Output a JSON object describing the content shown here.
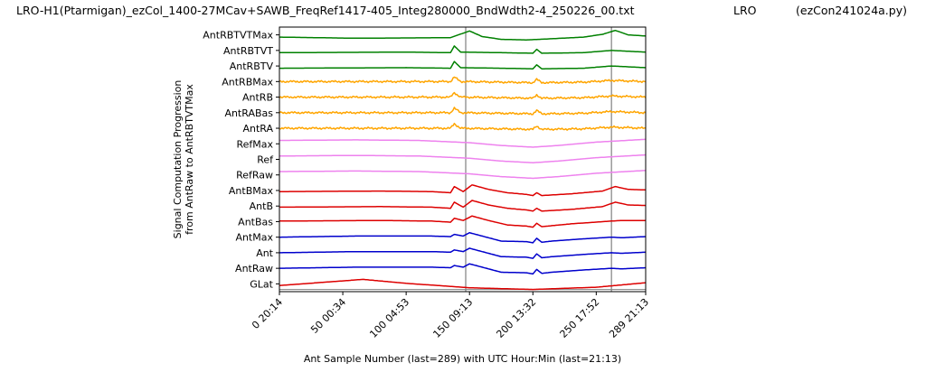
{
  "header": {
    "left": "LRO-H1(Ptarmigan)_ezCol_1400-27MCav+SAWB_FreqRef1417-405_Integ280000_BndWdth2-4_250226_00.txt",
    "middle": "LRO",
    "right": "(ezCon241024a.py)"
  },
  "chart_data": {
    "type": "line",
    "title": "",
    "xlabel": "Ant Sample Number (last=289) with UTC Hour:Min (last=21:13)",
    "ylabel": [
      "Signal Computation Progression",
      "from AntRaw to AntRBTVTMax"
    ],
    "xlim": [
      0,
      289
    ],
    "x_ticks": [
      {
        "x": 0,
        "label": "0  20:14"
      },
      {
        "x": 50,
        "label": "50  00:34"
      },
      {
        "x": 100,
        "label": "100  04:53"
      },
      {
        "x": 150,
        "label": "150  09:13"
      },
      {
        "x": 200,
        "label": "200  13:32"
      },
      {
        "x": 250,
        "label": "250  17:52"
      },
      {
        "x": 289,
        "label": "289  21:13"
      }
    ],
    "vlines": [
      147,
      262
    ],
    "grid": false,
    "legend": "none",
    "series": [
      {
        "name": "GLat",
        "color": "#dd0000",
        "x": [
          0,
          66,
          100,
          150,
          200,
          250,
          289
        ],
        "y": [
          0.35,
          0.9,
          0.55,
          0.15,
          0.0,
          0.2,
          0.6
        ],
        "baseline": true
      },
      {
        "name": "AntRaw",
        "color": "#0000cc",
        "x": [
          0,
          60,
          120,
          135,
          138,
          145,
          150,
          160,
          175,
          195,
          200,
          203,
          207,
          215,
          240,
          262,
          270,
          289
        ],
        "y": [
          0.5,
          0.6,
          0.6,
          0.55,
          0.75,
          0.6,
          0.9,
          0.6,
          0.15,
          0.1,
          0.0,
          0.4,
          0.05,
          0.15,
          0.35,
          0.5,
          0.45,
          0.55
        ]
      },
      {
        "name": "Ant",
        "color": "#0000cc",
        "x": [
          0,
          60,
          120,
          135,
          138,
          145,
          150,
          160,
          175,
          195,
          200,
          203,
          207,
          215,
          240,
          262,
          270,
          289
        ],
        "y": [
          0.5,
          0.6,
          0.6,
          0.55,
          0.75,
          0.6,
          0.9,
          0.6,
          0.15,
          0.1,
          0.0,
          0.4,
          0.05,
          0.15,
          0.35,
          0.5,
          0.45,
          0.55
        ]
      },
      {
        "name": "AntMax",
        "color": "#0000cc",
        "x": [
          0,
          60,
          120,
          135,
          138,
          145,
          150,
          160,
          175,
          195,
          200,
          203,
          207,
          215,
          240,
          262,
          270,
          289
        ],
        "y": [
          0.5,
          0.6,
          0.6,
          0.55,
          0.75,
          0.6,
          0.9,
          0.6,
          0.15,
          0.1,
          0.0,
          0.4,
          0.05,
          0.15,
          0.35,
          0.5,
          0.45,
          0.55
        ]
      },
      {
        "name": "AntBas",
        "color": "#dd0000",
        "x": [
          0,
          80,
          120,
          135,
          138,
          145,
          152,
          165,
          180,
          195,
          200,
          203,
          207,
          230,
          262,
          270,
          289
        ],
        "y": [
          0.55,
          0.6,
          0.55,
          0.45,
          0.8,
          0.6,
          1.0,
          0.6,
          0.2,
          0.1,
          0.0,
          0.35,
          0.05,
          0.3,
          0.55,
          0.6,
          0.6
        ]
      },
      {
        "name": "AntB",
        "color": "#dd0000",
        "x": [
          0,
          80,
          120,
          135,
          138,
          145,
          152,
          165,
          180,
          195,
          200,
          203,
          207,
          230,
          255,
          265,
          275,
          289
        ],
        "y": [
          0.4,
          0.45,
          0.4,
          0.3,
          0.85,
          0.4,
          1.0,
          0.6,
          0.3,
          0.15,
          0.05,
          0.3,
          0.05,
          0.2,
          0.45,
          0.85,
          0.6,
          0.55
        ]
      },
      {
        "name": "AntBMax",
        "color": "#dd0000",
        "x": [
          0,
          80,
          120,
          135,
          138,
          145,
          152,
          165,
          180,
          195,
          200,
          203,
          207,
          230,
          255,
          265,
          275,
          289
        ],
        "y": [
          0.4,
          0.45,
          0.4,
          0.3,
          0.85,
          0.4,
          1.0,
          0.6,
          0.3,
          0.15,
          0.05,
          0.3,
          0.05,
          0.2,
          0.45,
          0.85,
          0.6,
          0.55
        ]
      },
      {
        "name": "RefRaw",
        "color": "#ee82ee",
        "x": [
          0,
          60,
          110,
          150,
          175,
          200,
          220,
          250,
          289
        ],
        "y": [
          0.8,
          0.85,
          0.8,
          0.6,
          0.35,
          0.2,
          0.35,
          0.65,
          0.9
        ]
      },
      {
        "name": "Ref",
        "color": "#ee82ee",
        "x": [
          0,
          60,
          110,
          150,
          175,
          200,
          220,
          250,
          289
        ],
        "y": [
          0.8,
          0.85,
          0.8,
          0.6,
          0.35,
          0.2,
          0.35,
          0.65,
          0.9
        ]
      },
      {
        "name": "RefMax",
        "color": "#ee82ee",
        "x": [
          0,
          60,
          110,
          150,
          175,
          200,
          220,
          250,
          289
        ],
        "y": [
          0.8,
          0.85,
          0.8,
          0.6,
          0.35,
          0.2,
          0.35,
          0.65,
          0.9
        ]
      },
      {
        "name": "AntRA",
        "color": "#ffa500",
        "x": [
          0,
          135,
          138,
          143,
          175,
          200,
          203,
          207,
          240,
          262,
          289
        ],
        "y": [
          0.5,
          0.5,
          0.9,
          0.5,
          0.45,
          0.4,
          0.7,
          0.4,
          0.45,
          0.6,
          0.5
        ],
        "noise": 1
      },
      {
        "name": "AntRABas",
        "color": "#ffa500",
        "x": [
          0,
          135,
          138,
          143,
          175,
          200,
          203,
          207,
          240,
          262,
          289
        ],
        "y": [
          0.5,
          0.5,
          0.9,
          0.5,
          0.45,
          0.4,
          0.7,
          0.4,
          0.45,
          0.6,
          0.5
        ],
        "noise": 1
      },
      {
        "name": "AntRB",
        "color": "#ffa500",
        "x": [
          0,
          135,
          138,
          143,
          175,
          200,
          203,
          207,
          240,
          262,
          289
        ],
        "y": [
          0.5,
          0.5,
          0.9,
          0.5,
          0.45,
          0.4,
          0.7,
          0.4,
          0.45,
          0.6,
          0.5
        ],
        "noise": 1
      },
      {
        "name": "AntRBMax",
        "color": "#ffa500",
        "x": [
          0,
          135,
          138,
          143,
          175,
          200,
          203,
          207,
          240,
          262,
          289
        ],
        "y": [
          0.5,
          0.5,
          0.9,
          0.5,
          0.45,
          0.4,
          0.7,
          0.4,
          0.45,
          0.6,
          0.5
        ],
        "noise": 1
      },
      {
        "name": "AntRBTV",
        "color": "#008000",
        "x": [
          0,
          100,
          135,
          138,
          143,
          175,
          200,
          203,
          207,
          240,
          262,
          289
        ],
        "y": [
          0.3,
          0.35,
          0.3,
          0.9,
          0.35,
          0.3,
          0.25,
          0.6,
          0.25,
          0.3,
          0.5,
          0.35
        ]
      },
      {
        "name": "AntRBTVT",
        "color": "#008000",
        "x": [
          0,
          100,
          135,
          138,
          143,
          175,
          200,
          203,
          207,
          240,
          262,
          289
        ],
        "y": [
          0.3,
          0.35,
          0.3,
          0.9,
          0.35,
          0.3,
          0.25,
          0.6,
          0.25,
          0.3,
          0.5,
          0.35
        ]
      },
      {
        "name": "AntRBTVTMax",
        "color": "#008000",
        "x": [
          0,
          60,
          135,
          150,
          160,
          175,
          195,
          205,
          240,
          255,
          265,
          275,
          289
        ],
        "y": [
          0.3,
          0.2,
          0.25,
          0.85,
          0.35,
          0.1,
          0.05,
          0.1,
          0.3,
          0.55,
          0.9,
          0.5,
          0.4
        ]
      }
    ]
  }
}
